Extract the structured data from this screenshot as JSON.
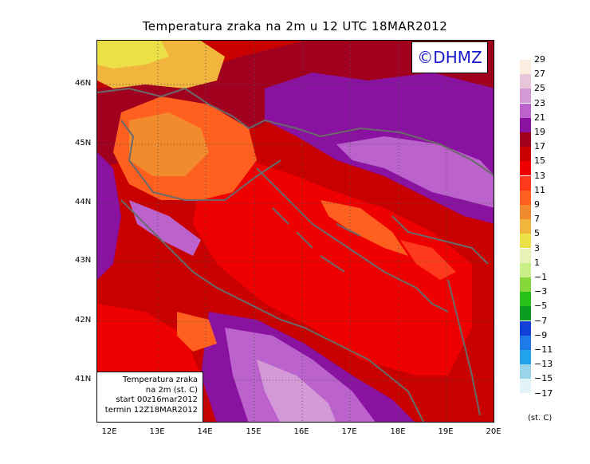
{
  "title": "Temperatura zraka na 2m u 12 UTC 18MAR2012",
  "logo": "©DHMZ",
  "info_box": {
    "line1": "Temperatura zraka",
    "line2": "na 2m (st. C)",
    "line3": "start 00z16mar2012",
    "line4": "termin 12Z18MAR2012"
  },
  "latitude_labels": [
    "46N",
    "45N",
    "44N",
    "43N",
    "42N",
    "41N"
  ],
  "longitude_labels": [
    "12E",
    "13E",
    "14E",
    "15E",
    "16E",
    "17E",
    "18E",
    "19E",
    "20E"
  ],
  "legend": {
    "units": "(st. C)",
    "levels": [
      {
        "label": "29",
        "color": "#fbeee0"
      },
      {
        "label": "27",
        "color": "#e6c6d8"
      },
      {
        "label": "25",
        "color": "#d49ad8"
      },
      {
        "label": "23",
        "color": "#bb62cc"
      },
      {
        "label": "21",
        "color": "#8a12a0"
      },
      {
        "label": "19",
        "color": "#a0001e"
      },
      {
        "label": "17",
        "color": "#c80000"
      },
      {
        "label": "15",
        "color": "#ee0000"
      },
      {
        "label": "13",
        "color": "#ff3a1c"
      },
      {
        "label": "11",
        "color": "#ff6020"
      },
      {
        "label": "9",
        "color": "#f28a2e"
      },
      {
        "label": "7",
        "color": "#f1b43c"
      },
      {
        "label": "5",
        "color": "#ebe046"
      },
      {
        "label": "3",
        "color": "#e9f2b6"
      },
      {
        "label": "1",
        "color": "#c8ef88"
      },
      {
        "label": "−1",
        "color": "#86d83a"
      },
      {
        "label": "−3",
        "color": "#28c21a"
      },
      {
        "label": "−5",
        "color": "#0c9c20"
      },
      {
        "label": "−7",
        "color": "#1040d6"
      },
      {
        "label": "−9",
        "color": "#1e7ae8"
      },
      {
        "label": "−11",
        "color": "#22a2ea"
      },
      {
        "label": "−13",
        "color": "#9ad4ea"
      },
      {
        "label": "−15",
        "color": "#e2f4fa"
      },
      {
        "label": "−17",
        "color": ""
      }
    ]
  }
}
